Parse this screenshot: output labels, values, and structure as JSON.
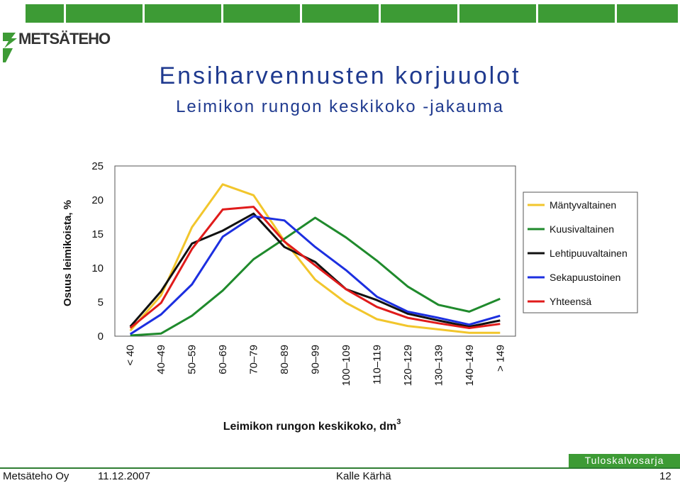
{
  "brand": {
    "logo_text": "METSÄTEHO"
  },
  "header": {
    "title": "Ensiharvennusten korjuuolot",
    "subtitle": "Leimikon rungon keskikoko -jakauma"
  },
  "colors": {
    "green_bar": "#3d9b35",
    "title_blue": "#1f3a8f"
  },
  "chart_data": {
    "type": "line",
    "categories": [
      "< 40",
      "40–49",
      "50–59",
      "60–69",
      "70–79",
      "80–89",
      "90–99",
      "100–109",
      "110–119",
      "120–129",
      "130–139",
      "140–149",
      "> 149"
    ],
    "series": [
      {
        "name": "Mäntyvaltainen",
        "color": "#f2c62c",
        "values": [
          0.8,
          6.0,
          16.0,
          22.3,
          20.7,
          14.0,
          8.3,
          4.9,
          2.5,
          1.5,
          1.0,
          0.5,
          0.5
        ]
      },
      {
        "name": "Kuusivaltainen",
        "color": "#1f8a2c",
        "values": [
          0.1,
          0.4,
          3.0,
          6.7,
          11.3,
          14.3,
          17.4,
          14.5,
          11.1,
          7.3,
          4.6,
          3.6,
          5.5
        ]
      },
      {
        "name": "Lehtipuuvaltainen",
        "color": "#111111",
        "values": [
          1.4,
          6.6,
          13.6,
          15.5,
          18.0,
          13.1,
          10.9,
          6.9,
          5.3,
          3.3,
          2.3,
          1.4,
          2.3
        ]
      },
      {
        "name": "Sekapuustoinen",
        "color": "#1c2fe0",
        "values": [
          0.3,
          3.2,
          7.6,
          14.6,
          17.6,
          17.0,
          13.1,
          9.7,
          5.8,
          3.6,
          2.7,
          1.7,
          3.0
        ]
      },
      {
        "name": "Yhteensä",
        "color": "#e01b1b",
        "values": [
          1.2,
          4.9,
          12.8,
          18.6,
          19.0,
          13.9,
          10.4,
          6.9,
          4.3,
          2.7,
          1.9,
          1.2,
          1.8
        ]
      }
    ],
    "ylabel": "Osuus leimikoista, %",
    "xlabel": "Leimikon rungon keskikoko, dm",
    "xlabel_sup": "3",
    "ylim": [
      0,
      25
    ],
    "yticks": [
      0,
      5,
      10,
      15,
      20,
      25
    ],
    "grid": false,
    "legend_position": "right"
  },
  "footer": {
    "badge": "Tuloskalvosarja",
    "org": "Metsäteho Oy",
    "date": "11.12.2007",
    "author": "Kalle Kärhä",
    "page": "12"
  }
}
